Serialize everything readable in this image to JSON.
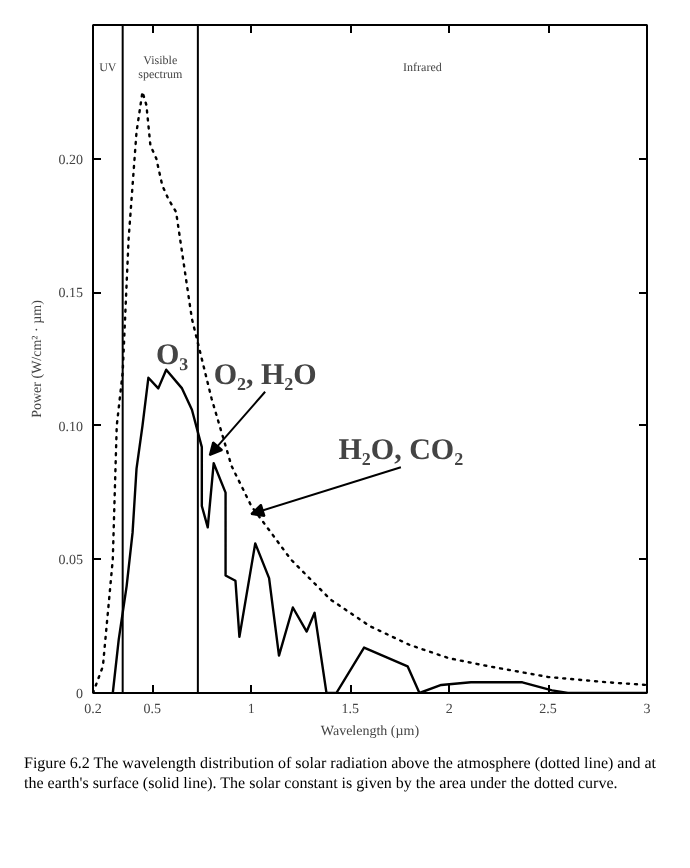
{
  "chart_data": {
    "type": "line",
    "xlabel": "Wavelength (µm)",
    "ylabel": "Power (W/cm² · µm)",
    "xlim": [
      0.2,
      3
    ],
    "ylim": [
      0,
      0.25
    ],
    "xticks": [
      0.2,
      0.5,
      1,
      1.5,
      2,
      2.5,
      3
    ],
    "yticks": [
      0,
      0.05,
      {
        "value": 0.1,
        "label": "0.10"
      },
      0.15,
      {
        "value": 0.2,
        "label": "0.20"
      }
    ],
    "grid": false,
    "marker": "none",
    "series": [
      {
        "color": "#000000",
        "line_style": "dotted",
        "x": [
          0.2,
          0.25,
          0.3,
          0.32,
          0.35,
          0.38,
          0.4,
          0.42,
          0.45,
          0.47,
          0.49,
          0.52,
          0.55,
          0.58,
          0.62,
          0.65,
          0.7,
          0.8,
          0.9,
          1.0,
          1.2,
          1.4,
          1.6,
          1.8,
          2.0,
          2.2,
          2.5,
          2.8,
          3.0
        ],
        "values": [
          0.0,
          0.01,
          0.05,
          0.1,
          0.12,
          0.17,
          0.19,
          0.21,
          0.225,
          0.22,
          0.205,
          0.2,
          0.19,
          0.185,
          0.18,
          0.165,
          0.14,
          0.11,
          0.085,
          0.07,
          0.05,
          0.035,
          0.025,
          0.018,
          0.013,
          0.01,
          0.006,
          0.004,
          0.003
        ]
      },
      {
        "color": "#000000",
        "line_style": "solid",
        "x": [
          0.3,
          0.33,
          0.37,
          0.4,
          0.42,
          0.45,
          0.48,
          0.53,
          0.57,
          0.65,
          0.7,
          0.75,
          0.75,
          0.78,
          0.81,
          0.87,
          0.87,
          0.92,
          0.94,
          1.02,
          1.09,
          1.14,
          1.21,
          1.28,
          1.32,
          1.38,
          1.43,
          1.57,
          1.79,
          1.85,
          1.96,
          2.11,
          2.37,
          2.52,
          2.6,
          3.0
        ],
        "values": [
          0,
          0.02,
          0.04,
          0.06,
          0.084,
          0.1,
          0.118,
          0.114,
          0.121,
          0.114,
          0.106,
          0.092,
          0.07,
          0.062,
          0.086,
          0.075,
          0.044,
          0.042,
          0.021,
          0.056,
          0.043,
          0.014,
          0.032,
          0.023,
          0.03,
          0,
          0,
          0.017,
          0.01,
          0,
          0.003,
          0.004,
          0.004,
          0.001,
          0,
          0
        ]
      }
    ],
    "ref_lines": [
      {
        "axis": "x",
        "value": 0.35,
        "color": "#000000"
      },
      {
        "axis": "x",
        "value": 0.73,
        "color": "#000000"
      }
    ],
    "annotations": [
      "UV",
      "Visible spectrum",
      "Infrared",
      "Figure 6.2   The wavelength distribution of solar radiation above the atmosphere (dotted line) and at the earth's surface (solid line). The solar constant is given by the area under the dotted curve.",
      {
        "text": "O₃",
        "x": 0.6,
        "y": 0.12
      },
      {
        "text": "O₂, H₂O",
        "x": 0.79,
        "y": 0.089
      },
      {
        "text": "H₂O, CO₂",
        "x": 1.0,
        "y": 0.067
      }
    ]
  }
}
